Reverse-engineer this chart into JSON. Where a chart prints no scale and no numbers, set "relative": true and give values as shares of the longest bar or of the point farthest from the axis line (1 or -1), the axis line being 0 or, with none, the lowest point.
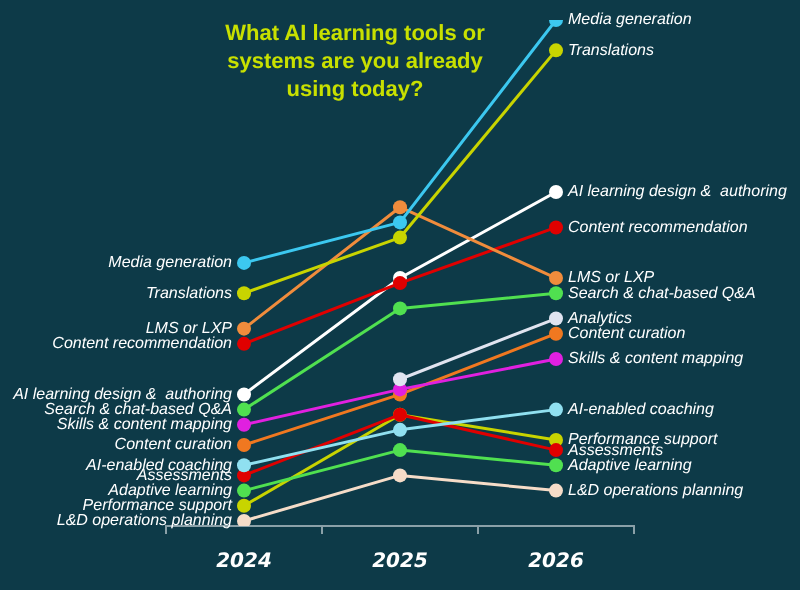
{
  "chart_data": {
    "type": "line",
    "title": "What AI learning tools or systems are you already using today?",
    "categories": [
      "2024",
      "2025",
      "2026"
    ],
    "relative": true,
    "legend": false,
    "grid": false,
    "marker": "circle",
    "line_style": "solid",
    "series": [
      {
        "name": "Media generation",
        "color": "#3cc8f0",
        "values": [
          0.52,
          0.6,
          1
        ]
      },
      {
        "name": "Translations",
        "color": "#c8d400",
        "values": [
          0.46,
          0.57,
          0.94
        ]
      },
      {
        "name": "LMS or LXP",
        "color": "#f08c3c",
        "values": [
          0.39,
          0.63,
          0.49
        ]
      },
      {
        "name": "Content recommendation",
        "color": "#e00000",
        "values": [
          0.36,
          0.48,
          0.59
        ]
      },
      {
        "name": "AI learning design &  authoring",
        "color": "#ffffff",
        "values": [
          0.26,
          0.49,
          0.66
        ]
      },
      {
        "name": "Search & chat-based Q&A",
        "color": "#50e050",
        "values": [
          0.23,
          0.43,
          0.46
        ]
      },
      {
        "name": "Analytics",
        "color": "#e0e4f0",
        "values": [
          null,
          0.29,
          0.41
        ]
      },
      {
        "name": "Skills & content mapping",
        "color": "#e020e0",
        "values": [
          0.2,
          0.27,
          0.33
        ]
      },
      {
        "name": "Content curation",
        "color": "#f07820",
        "values": [
          0.16,
          0.26,
          0.38
        ]
      },
      {
        "name": "AI-enabled coaching",
        "color": "#90e0f0",
        "values": [
          0.12,
          0.19,
          0.23
        ]
      },
      {
        "name": "Assessments",
        "color": "#e00000",
        "values": [
          0.1,
          0.22,
          0.15
        ]
      },
      {
        "name": "Adaptive learning",
        "color": "#50e050",
        "values": [
          0.07,
          0.15,
          0.12
        ]
      },
      {
        "name": "Performance support",
        "color": "#c8d400",
        "values": [
          0.04,
          0.22,
          0.17
        ]
      },
      {
        "name": "L&D operations planning",
        "color": "#f5dcc8",
        "values": [
          0.01,
          0.1,
          0.07
        ]
      }
    ]
  }
}
